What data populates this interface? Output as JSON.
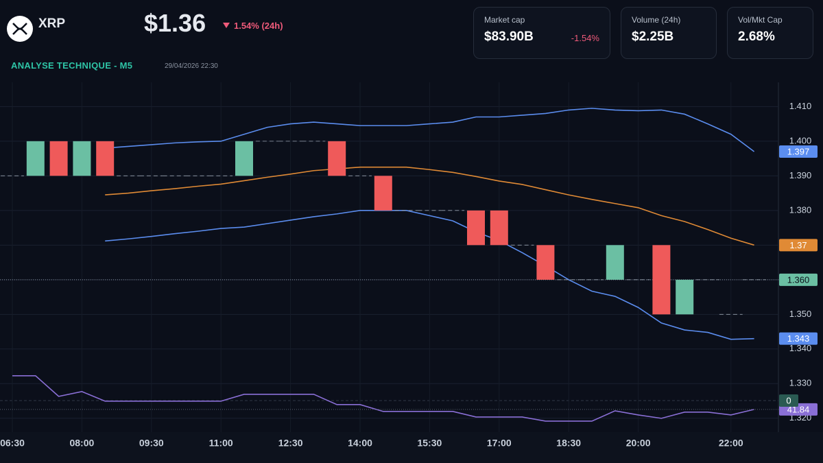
{
  "header": {
    "symbol": "XRP",
    "price": "$1.36",
    "change": "1.54% (24h)"
  },
  "section": {
    "title": "ANALYSE TECHNIQUE - M5",
    "timestamp": "29/04/2026 22:30"
  },
  "stats": [
    {
      "label": "Market cap",
      "value": "$83.90B",
      "change": "-1.54%"
    },
    {
      "label": "Volume (24h)",
      "value": "$2.25B"
    },
    {
      "label": "Vol/Mkt Cap",
      "value": "2.68%"
    }
  ],
  "chart_data": {
    "type": "candlestick",
    "categories": [
      "06:30",
      null,
      null,
      "08:00",
      null,
      null,
      "09:30",
      null,
      null,
      "11:00",
      null,
      null,
      "12:30",
      null,
      null,
      "14:00",
      null,
      null,
      "15:30",
      null,
      null,
      "17:00",
      null,
      null,
      "18:30",
      null,
      null,
      "20:00",
      null,
      null,
      null,
      "22:00",
      null
    ],
    "open": [
      1.39,
      1.39,
      1.4,
      1.39,
      1.4,
      1.39,
      1.39,
      1.39,
      1.39,
      1.39,
      1.39,
      1.4,
      1.4,
      1.4,
      1.4,
      1.39,
      1.39,
      1.38,
      1.38,
      1.38,
      1.38,
      1.38,
      1.37,
      1.37,
      1.36,
      1.36,
      1.36,
      1.36,
      1.37,
      1.35,
      1.36,
      1.35,
      1.36
    ],
    "close": [
      1.39,
      1.4,
      1.39,
      1.4,
      1.39,
      1.39,
      1.39,
      1.39,
      1.39,
      1.39,
      1.4,
      1.4,
      1.4,
      1.4,
      1.39,
      1.39,
      1.38,
      1.38,
      1.38,
      1.38,
      1.37,
      1.37,
      1.37,
      1.36,
      1.36,
      1.36,
      1.37,
      1.36,
      1.35,
      1.36,
      1.36,
      1.35,
      1.36
    ],
    "up_color": "#6bbfa3",
    "down_color": "#ef5a5a",
    "series": [
      {
        "color": "#5b8def",
        "values": [
          null,
          null,
          null,
          null,
          1.398,
          1.3985,
          1.399,
          1.3995,
          1.3998,
          1.4,
          1.402,
          1.404,
          1.405,
          1.4055,
          1.405,
          1.4045,
          1.4045,
          1.4045,
          1.405,
          1.4055,
          1.407,
          1.407,
          1.4075,
          1.408,
          1.409,
          1.4095,
          1.409,
          1.4088,
          1.409,
          1.4078,
          1.405,
          1.402,
          1.397
        ]
      },
      {
        "color": "#e08a35",
        "values": [
          null,
          null,
          null,
          null,
          1.3845,
          1.385,
          1.3857,
          1.3863,
          1.387,
          1.3876,
          1.3886,
          1.3896,
          1.3905,
          1.3915,
          1.392,
          1.3925,
          1.3925,
          1.3925,
          1.3918,
          1.391,
          1.3898,
          1.3885,
          1.3875,
          1.386,
          1.3845,
          1.3832,
          1.382,
          1.3808,
          1.3785,
          1.3768,
          1.3745,
          1.372,
          1.37
        ]
      },
      {
        "color": "#5b8def",
        "values": [
          null,
          null,
          null,
          null,
          1.3712,
          1.3718,
          1.3725,
          1.3733,
          1.374,
          1.3748,
          1.3752,
          1.3762,
          1.3772,
          1.3782,
          1.379,
          1.38,
          1.38,
          1.38,
          1.3785,
          1.377,
          1.3738,
          1.3713,
          1.3678,
          1.364,
          1.36,
          1.3567,
          1.3552,
          1.352,
          1.3475,
          1.3455,
          1.3448,
          1.3428,
          1.343
        ]
      },
      {
        "color": "#8a6fd6",
        "axis": "y2",
        "values": [
          80.5,
          80.5,
          56.8,
          62.3,
          51.3,
          51.3,
          51.3,
          51.3,
          51.3,
          51.3,
          59.2,
          59.2,
          59.2,
          59.2,
          47.4,
          47.4,
          39.5,
          39.5,
          39.5,
          39.5,
          33.1,
          33.1,
          33.1,
          28.4,
          28.4,
          28.4,
          40.2,
          35.5,
          31.6,
          38.7,
          38.7,
          35.5,
          41.84
        ]
      }
    ],
    "last_price": {
      "value": 1.36,
      "label": "1.360"
    },
    "last_price_color": "#6bbfa3",
    "indicator_level": 0,
    "ylim": [
      1.316,
      1.417
    ],
    "yticks": [
      {
        "value": 1.32,
        "label": "1.320"
      },
      {
        "value": 1.33,
        "label": "1.330"
      },
      {
        "value": 1.34,
        "label": "1.340"
      },
      {
        "value": 1.35,
        "label": "1.350"
      },
      {
        "value": 1.36,
        "label": "1.360"
      },
      {
        "value": 1.37,
        "label": "1.370"
      },
      {
        "value": 1.38,
        "label": "1.380"
      },
      {
        "value": 1.39,
        "label": "1.390"
      },
      {
        "value": 1.4,
        "label": "1.400"
      },
      {
        "value": 1.41,
        "label": "1.410"
      }
    ],
    "y2lim": [
      0,
      100
    ],
    "grid": true
  }
}
